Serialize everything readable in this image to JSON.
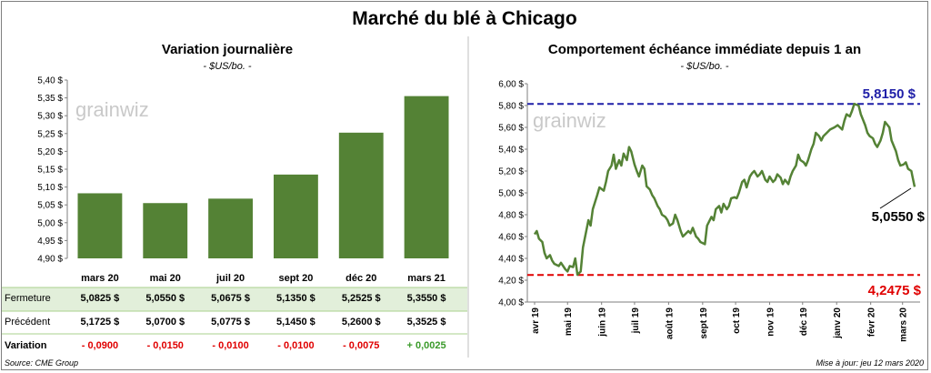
{
  "main_title": "Marché du blé à Chicago",
  "source": "Source: CME Group",
  "updated": "Mise à jour: jeu 12 mars 2020",
  "logo_text": "grainwiz",
  "colors": {
    "bar": "#548235",
    "line": "#548235",
    "max_line": "#1f1fa8",
    "min_line": "#e00000",
    "table_highlight": "#e2efda",
    "negative": "#e00000",
    "positive": "#3a9a2a"
  },
  "left": {
    "title": "Variation  journalière",
    "unit": "- $US/bo. -",
    "table": {
      "rows": [
        {
          "label": "Fermeture",
          "values": [
            "5,0825  $",
            "5,0550  $",
            "5,0675  $",
            "5,1350  $",
            "5,2525  $",
            "5,3550  $"
          ]
        },
        {
          "label": "Précédent",
          "values": [
            "5,1725  $",
            "5,0700  $",
            "5,0775  $",
            "5,1450  $",
            "5,2600  $",
            "5,3525  $"
          ]
        },
        {
          "label": "Variation",
          "values": [
            "- 0,0900",
            "- 0,0150",
            "- 0,0100",
            "- 0,0100",
            "- 0,0075",
            "+ 0,0025"
          ]
        }
      ]
    }
  },
  "right": {
    "title": "Comportement  échéance immédiate depuis 1 an",
    "unit": "- $US/bo. -",
    "max_label": "5,8150  $",
    "min_label": "4,2475  $",
    "last_label": "5,0550 $"
  },
  "chart_data": [
    {
      "type": "bar",
      "title": "Variation  journalière",
      "categories": [
        "mars 20",
        "mai 20",
        "juil 20",
        "sept 20",
        "déc 20",
        "mars 21"
      ],
      "values": [
        5.0825,
        5.055,
        5.0675,
        5.135,
        5.2525,
        5.355
      ],
      "ylim": [
        4.9,
        5.4
      ],
      "yticks": [
        "4,90 $",
        "4,95 $",
        "5,00 $",
        "5,05 $",
        "5,10 $",
        "5,15 $",
        "5,20 $",
        "5,25 $",
        "5,30 $",
        "5,35 $",
        "5,40 $"
      ],
      "ytick_values": [
        4.9,
        4.95,
        5.0,
        5.05,
        5.1,
        5.15,
        5.2,
        5.25,
        5.3,
        5.35,
        5.4
      ],
      "grid": false
    },
    {
      "type": "line",
      "title": "Comportement  échéance immédiate depuis 1 an",
      "ylim": [
        4.0,
        6.0
      ],
      "yticks": [
        "4,00 $",
        "4,20 $",
        "4,40 $",
        "4,60 $",
        "4,80 $",
        "5,00 $",
        "5,20 $",
        "5,40 $",
        "5,60 $",
        "5,80 $",
        "6,00 $"
      ],
      "ytick_values": [
        4.0,
        4.2,
        4.4,
        4.6,
        4.8,
        5.0,
        5.2,
        5.4,
        5.6,
        5.8,
        6.0
      ],
      "xticks": [
        "avr 19",
        "mai 19",
        "juin 19",
        "juil 19",
        "août 19",
        "sept 19",
        "oct 19",
        "nov 19",
        "déc 19",
        "janv 20",
        "févr 20",
        "mars 20"
      ],
      "xtick_dates": [
        "2019-04-01",
        "2019-05-01",
        "2019-06-01",
        "2019-07-01",
        "2019-08-01",
        "2019-09-01",
        "2019-10-01",
        "2019-11-01",
        "2019-12-01",
        "2020-01-01",
        "2020-02-01",
        "2020-03-01"
      ],
      "xrange": [
        "2019-04-01",
        "2020-03-12"
      ],
      "reference_lines": [
        {
          "label": "5,8150  $",
          "value": 5.815
        },
        {
          "label": "4,2475  $",
          "value": 4.2475
        }
      ],
      "series": [
        {
          "points": [
            [
              "2019-04-01",
              4.62
            ],
            [
              "2019-04-03",
              4.65
            ],
            [
              "2019-04-05",
              4.58
            ],
            [
              "2019-04-08",
              4.55
            ],
            [
              "2019-04-10",
              4.45
            ],
            [
              "2019-04-12",
              4.4
            ],
            [
              "2019-04-15",
              4.43
            ],
            [
              "2019-04-17",
              4.38
            ],
            [
              "2019-04-19",
              4.35
            ],
            [
              "2019-04-23",
              4.33
            ],
            [
              "2019-04-25",
              4.36
            ],
            [
              "2019-04-29",
              4.3
            ],
            [
              "2019-05-01",
              4.28
            ],
            [
              "2019-05-03",
              4.33
            ],
            [
              "2019-05-06",
              4.32
            ],
            [
              "2019-05-08",
              4.4
            ],
            [
              "2019-05-10",
              4.25
            ],
            [
              "2019-05-13",
              4.28
            ],
            [
              "2019-05-15",
              4.5
            ],
            [
              "2019-05-17",
              4.6
            ],
            [
              "2019-05-20",
              4.75
            ],
            [
              "2019-05-22",
              4.7
            ],
            [
              "2019-05-24",
              4.85
            ],
            [
              "2019-05-28",
              4.98
            ],
            [
              "2019-05-30",
              5.05
            ],
            [
              "2019-06-03",
              5.02
            ],
            [
              "2019-06-05",
              5.1
            ],
            [
              "2019-06-07",
              5.2
            ],
            [
              "2019-06-10",
              5.25
            ],
            [
              "2019-06-12",
              5.35
            ],
            [
              "2019-06-14",
              5.22
            ],
            [
              "2019-06-17",
              5.3
            ],
            [
              "2019-06-19",
              5.25
            ],
            [
              "2019-06-21",
              5.36
            ],
            [
              "2019-06-24",
              5.3
            ],
            [
              "2019-06-26",
              5.42
            ],
            [
              "2019-06-28",
              5.38
            ],
            [
              "2019-07-01",
              5.26
            ],
            [
              "2019-07-03",
              5.2
            ],
            [
              "2019-07-05",
              5.15
            ],
            [
              "2019-07-08",
              5.25
            ],
            [
              "2019-07-10",
              5.22
            ],
            [
              "2019-07-12",
              5.06
            ],
            [
              "2019-07-15",
              5.03
            ],
            [
              "2019-07-17",
              4.98
            ],
            [
              "2019-07-19",
              4.95
            ],
            [
              "2019-07-22",
              4.88
            ],
            [
              "2019-07-24",
              4.85
            ],
            [
              "2019-07-26",
              4.8
            ],
            [
              "2019-07-29",
              4.78
            ],
            [
              "2019-07-31",
              4.75
            ],
            [
              "2019-08-02",
              4.7
            ],
            [
              "2019-08-05",
              4.72
            ],
            [
              "2019-08-07",
              4.8
            ],
            [
              "2019-08-09",
              4.75
            ],
            [
              "2019-08-12",
              4.65
            ],
            [
              "2019-08-14",
              4.6
            ],
            [
              "2019-08-16",
              4.62
            ],
            [
              "2019-08-19",
              4.65
            ],
            [
              "2019-08-21",
              4.63
            ],
            [
              "2019-08-23",
              4.68
            ],
            [
              "2019-08-26",
              4.6
            ],
            [
              "2019-08-28",
              4.58
            ],
            [
              "2019-08-30",
              4.55
            ],
            [
              "2019-09-03",
              4.53
            ],
            [
              "2019-09-05",
              4.7
            ],
            [
              "2019-09-09",
              4.78
            ],
            [
              "2019-09-11",
              4.75
            ],
            [
              "2019-09-13",
              4.85
            ],
            [
              "2019-09-16",
              4.88
            ],
            [
              "2019-09-18",
              4.82
            ],
            [
              "2019-09-20",
              4.9
            ],
            [
              "2019-09-23",
              4.85
            ],
            [
              "2019-09-25",
              4.88
            ],
            [
              "2019-09-27",
              4.95
            ],
            [
              "2019-09-30",
              4.96
            ],
            [
              "2019-10-02",
              4.95
            ],
            [
              "2019-10-04",
              5.0
            ],
            [
              "2019-10-07",
              5.1
            ],
            [
              "2019-10-09",
              5.12
            ],
            [
              "2019-10-11",
              5.05
            ],
            [
              "2019-10-14",
              5.15
            ],
            [
              "2019-10-16",
              5.18
            ],
            [
              "2019-10-18",
              5.2
            ],
            [
              "2019-10-21",
              5.15
            ],
            [
              "2019-10-23",
              5.17
            ],
            [
              "2019-10-25",
              5.2
            ],
            [
              "2019-10-28",
              5.12
            ],
            [
              "2019-10-30",
              5.1
            ],
            [
              "2019-11-01",
              5.15
            ],
            [
              "2019-11-04",
              5.1
            ],
            [
              "2019-11-06",
              5.12
            ],
            [
              "2019-11-08",
              5.17
            ],
            [
              "2019-11-11",
              5.14
            ],
            [
              "2019-11-13",
              5.08
            ],
            [
              "2019-11-15",
              5.12
            ],
            [
              "2019-11-18",
              5.08
            ],
            [
              "2019-11-20",
              5.15
            ],
            [
              "2019-11-22",
              5.2
            ],
            [
              "2019-11-25",
              5.25
            ],
            [
              "2019-11-27",
              5.35
            ],
            [
              "2019-11-29",
              5.3
            ],
            [
              "2019-12-02",
              5.28
            ],
            [
              "2019-12-04",
              5.25
            ],
            [
              "2019-12-06",
              5.3
            ],
            [
              "2019-12-09",
              5.4
            ],
            [
              "2019-12-11",
              5.45
            ],
            [
              "2019-12-13",
              5.55
            ],
            [
              "2019-12-16",
              5.52
            ],
            [
              "2019-12-18",
              5.48
            ],
            [
              "2019-12-20",
              5.52
            ],
            [
              "2019-12-23",
              5.55
            ],
            [
              "2019-12-26",
              5.58
            ],
            [
              "2019-12-30",
              5.6
            ],
            [
              "2020-01-02",
              5.62
            ],
            [
              "2020-01-06",
              5.58
            ],
            [
              "2020-01-08",
              5.66
            ],
            [
              "2020-01-10",
              5.72
            ],
            [
              "2020-01-13",
              5.7
            ],
            [
              "2020-01-15",
              5.75
            ],
            [
              "2020-01-17",
              5.815
            ],
            [
              "2020-01-21",
              5.8
            ],
            [
              "2020-01-23",
              5.72
            ],
            [
              "2020-01-27",
              5.62
            ],
            [
              "2020-01-29",
              5.55
            ],
            [
              "2020-01-31",
              5.52
            ],
            [
              "2020-02-03",
              5.5
            ],
            [
              "2020-02-05",
              5.45
            ],
            [
              "2020-02-07",
              5.42
            ],
            [
              "2020-02-10",
              5.48
            ],
            [
              "2020-02-12",
              5.55
            ],
            [
              "2020-02-14",
              5.65
            ],
            [
              "2020-02-18",
              5.6
            ],
            [
              "2020-02-20",
              5.48
            ],
            [
              "2020-02-24",
              5.38
            ],
            [
              "2020-02-26",
              5.3
            ],
            [
              "2020-02-28",
              5.25
            ],
            [
              "2020-03-02",
              5.26
            ],
            [
              "2020-03-04",
              5.28
            ],
            [
              "2020-03-06",
              5.22
            ],
            [
              "2020-03-09",
              5.2
            ],
            [
              "2020-03-10",
              5.15
            ],
            [
              "2020-03-12",
              5.055
            ]
          ]
        }
      ]
    }
  ]
}
